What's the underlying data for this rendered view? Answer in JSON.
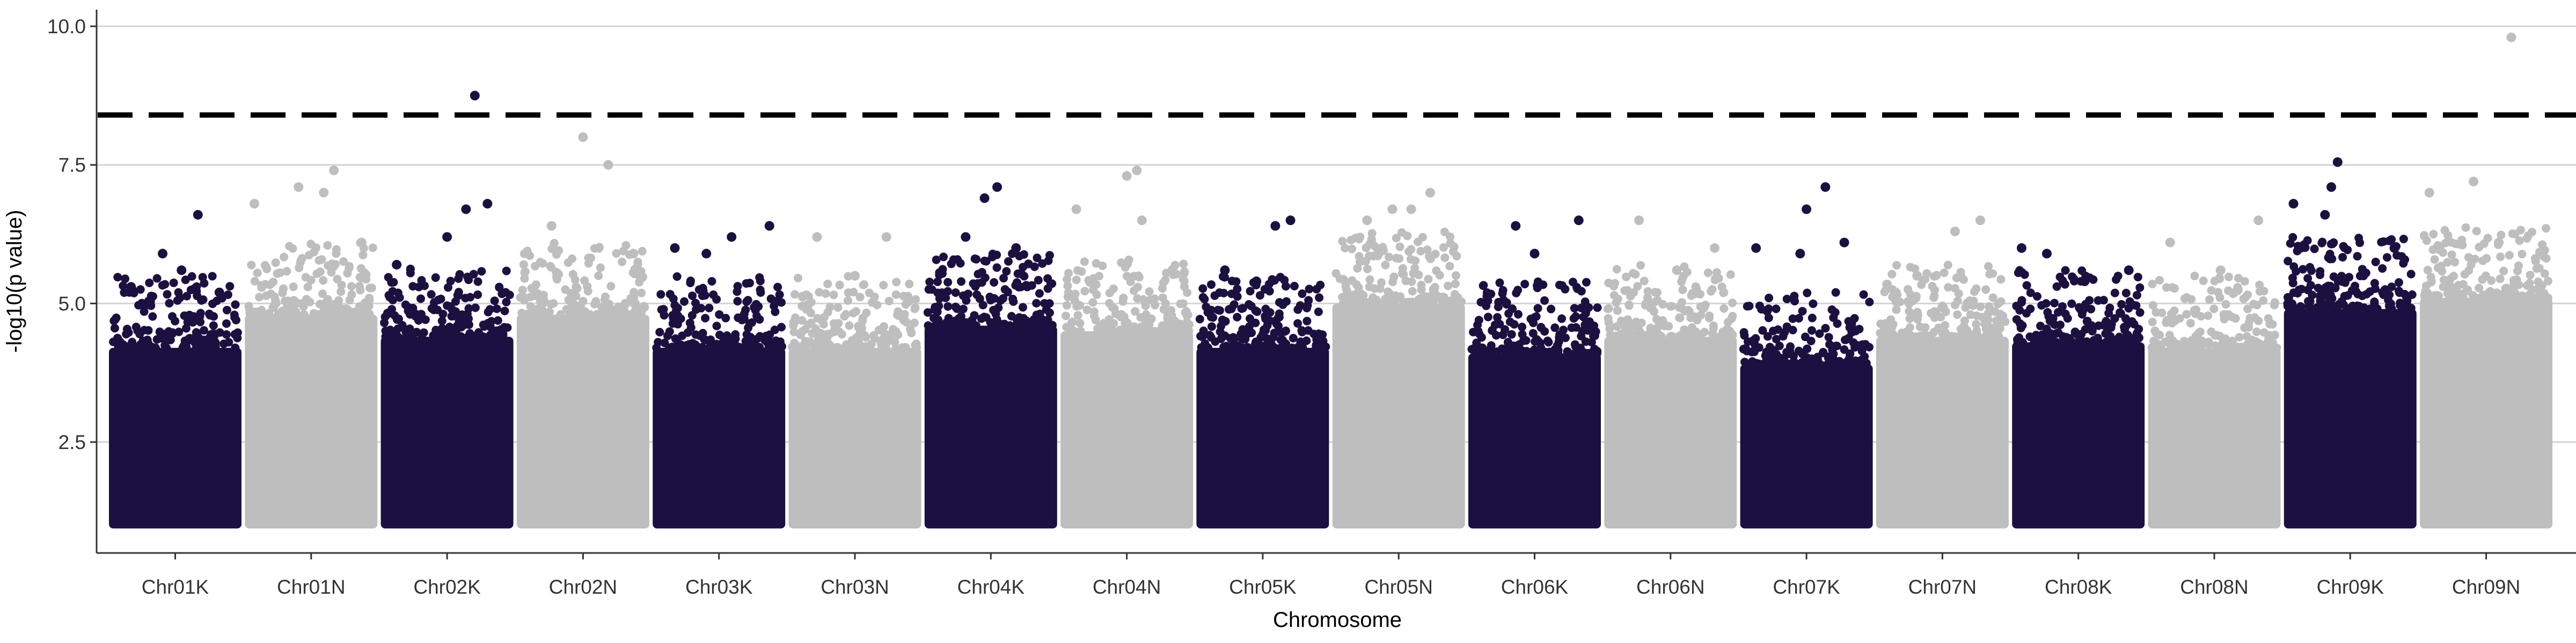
{
  "chart_data": {
    "type": "scatter",
    "title": "",
    "xlabel": "Chromosome",
    "ylabel": "-log10(p value)",
    "ylim": [
      0.5,
      10.3
    ],
    "y_ticks": [
      {
        "value": 2.5,
        "label": "2.5"
      },
      {
        "value": 5.0,
        "label": "5.0"
      },
      {
        "value": 7.5,
        "label": "7.5"
      },
      {
        "value": 10.0,
        "label": "10.0"
      }
    ],
    "grid": "horizontal major gridlines only",
    "legend": "none",
    "threshold": {
      "value": 8.4,
      "style": "dashed",
      "color": "#000000"
    },
    "colors": {
      "odd": "#1c1040",
      "even": "#bebebe",
      "grid": "#d3d3d3",
      "axis": "#333333"
    },
    "categories": [
      "Chr01K",
      "Chr01N",
      "Chr02K",
      "Chr02N",
      "Chr03K",
      "Chr03N",
      "Chr04K",
      "Chr04N",
      "Chr05K",
      "Chr05N",
      "Chr06K",
      "Chr06N",
      "Chr07K",
      "Chr07N",
      "Chr08K",
      "Chr08N",
      "Chr09K",
      "Chr09N"
    ],
    "series": [
      {
        "chromosome": "Chr01K",
        "dense_max": 4.2,
        "top_peaks": [
          [
            0.15,
            5.3
          ],
          [
            0.4,
            5.9
          ],
          [
            0.55,
            5.6
          ],
          [
            0.68,
            6.6
          ],
          [
            0.85,
            5.2
          ]
        ]
      },
      {
        "chromosome": "Chr01N",
        "dense_max": 4.8,
        "top_peaks": [
          [
            0.05,
            6.8
          ],
          [
            0.4,
            7.1
          ],
          [
            0.6,
            7.0
          ],
          [
            0.68,
            7.4
          ],
          [
            0.9,
            6.1
          ]
        ]
      },
      {
        "chromosome": "Chr02K",
        "dense_max": 4.4,
        "top_peaks": [
          [
            0.1,
            5.7
          ],
          [
            0.5,
            6.2
          ],
          [
            0.65,
            6.7
          ],
          [
            0.72,
            8.75
          ],
          [
            0.82,
            6.8
          ]
        ]
      },
      {
        "chromosome": "Chr02N",
        "dense_max": 4.8,
        "top_peaks": [
          [
            0.25,
            6.4
          ],
          [
            0.5,
            8.0
          ],
          [
            0.7,
            7.5
          ],
          [
            0.9,
            5.9
          ]
        ]
      },
      {
        "chromosome": "Chr03K",
        "dense_max": 4.2,
        "top_peaks": [
          [
            0.15,
            6.0
          ],
          [
            0.4,
            5.9
          ],
          [
            0.6,
            6.2
          ],
          [
            0.9,
            6.4
          ]
        ]
      },
      {
        "chromosome": "Chr03N",
        "dense_max": 4.2,
        "top_peaks": [
          [
            0.2,
            6.2
          ],
          [
            0.5,
            5.5
          ],
          [
            0.75,
            6.2
          ]
        ]
      },
      {
        "chromosome": "Chr04K",
        "dense_max": 4.6,
        "top_peaks": [
          [
            0.3,
            6.2
          ],
          [
            0.45,
            6.9
          ],
          [
            0.55,
            7.1
          ],
          [
            0.7,
            6.0
          ]
        ]
      },
      {
        "chromosome": "Chr04N",
        "dense_max": 4.5,
        "top_peaks": [
          [
            0.1,
            6.7
          ],
          [
            0.5,
            7.3
          ],
          [
            0.58,
            7.4
          ],
          [
            0.62,
            6.5
          ]
        ]
      },
      {
        "chromosome": "Chr05K",
        "dense_max": 4.2,
        "top_peaks": [
          [
            0.2,
            5.6
          ],
          [
            0.45,
            5.4
          ],
          [
            0.6,
            6.4
          ],
          [
            0.72,
            6.5
          ]
        ]
      },
      {
        "chromosome": "Chr05N",
        "dense_max": 5.0,
        "top_peaks": [
          [
            0.25,
            6.5
          ],
          [
            0.45,
            6.7
          ],
          [
            0.6,
            6.7
          ],
          [
            0.75,
            7.0
          ]
        ]
      },
      {
        "chromosome": "Chr06K",
        "dense_max": 4.1,
        "top_peaks": [
          [
            0.35,
            6.4
          ],
          [
            0.5,
            5.9
          ],
          [
            0.85,
            6.5
          ]
        ]
      },
      {
        "chromosome": "Chr06N",
        "dense_max": 4.4,
        "top_peaks": [
          [
            0.25,
            6.5
          ],
          [
            0.55,
            5.6
          ],
          [
            0.85,
            6.0
          ]
        ]
      },
      {
        "chromosome": "Chr07K",
        "dense_max": 3.9,
        "top_peaks": [
          [
            0.1,
            6.0
          ],
          [
            0.45,
            5.9
          ],
          [
            0.5,
            6.7
          ],
          [
            0.65,
            7.1
          ],
          [
            0.8,
            6.1
          ]
        ]
      },
      {
        "chromosome": "Chr07N",
        "dense_max": 4.4,
        "top_peaks": [
          [
            0.3,
            5.5
          ],
          [
            0.6,
            6.3
          ],
          [
            0.8,
            6.5
          ]
        ]
      },
      {
        "chromosome": "Chr08K",
        "dense_max": 4.3,
        "top_peaks": [
          [
            0.05,
            6.0
          ],
          [
            0.25,
            5.9
          ],
          [
            0.55,
            5.4
          ],
          [
            0.9,
            5.6
          ]
        ]
      },
      {
        "chromosome": "Chr08N",
        "dense_max": 4.2,
        "top_peaks": [
          [
            0.15,
            6.1
          ],
          [
            0.55,
            5.6
          ],
          [
            0.85,
            6.5
          ]
        ]
      },
      {
        "chromosome": "Chr09K",
        "dense_max": 4.9,
        "top_peaks": [
          [
            0.05,
            6.8
          ],
          [
            0.3,
            6.6
          ],
          [
            0.35,
            7.1
          ],
          [
            0.4,
            7.55
          ],
          [
            0.85,
            6.0
          ]
        ]
      },
      {
        "chromosome": "Chr09N",
        "dense_max": 5.1,
        "top_peaks": [
          [
            0.05,
            7.0
          ],
          [
            0.4,
            7.2
          ],
          [
            0.6,
            6.1
          ],
          [
            0.7,
            9.8
          ]
        ]
      }
    ]
  }
}
